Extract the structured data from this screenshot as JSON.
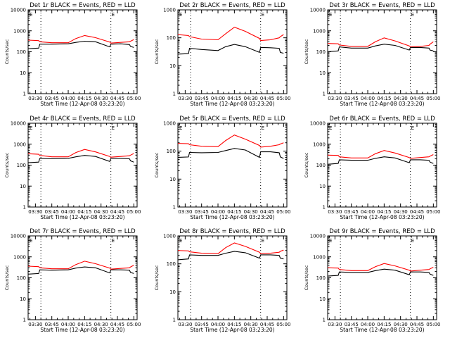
{
  "colors": {
    "events": "#000000",
    "lld": "#ff0000",
    "background": "#ffffff"
  },
  "chart_data": [
    {
      "type": "line",
      "title": "Det 1r BLACK = Events, RED = LLD",
      "xlabel": "Start Time (12-Apr-08 03:23:20)",
      "ylabel": "Counts/sec",
      "x_ticks": [
        "03:30",
        "03:45",
        "04:00",
        "04:15",
        "04:30",
        "04:45",
        "05:00"
      ],
      "y_ticks": [
        "1",
        "10",
        "100",
        "1000",
        "10000"
      ],
      "yscale": "log",
      "ylim": [
        1,
        10000
      ],
      "corner_label": "E",
      "vlines": [
        "03:35",
        "04:39"
      ],
      "series": [
        {
          "x": [
            "03:23",
            "03:33",
            "03:34",
            "03:45",
            "04:00",
            "04:07",
            "04:15",
            "04:25",
            "04:38",
            "04:39",
            "04:48",
            "04:56",
            "04:57",
            "05:00"
          ],
          "values": [
            140,
            150,
            230,
            230,
            240,
            280,
            320,
            300,
            170,
            230,
            240,
            220,
            180,
            160
          ]
        },
        {
          "x": [
            "03:23",
            "03:33",
            "03:34",
            "03:45",
            "04:00",
            "04:07",
            "04:15",
            "04:25",
            "04:38",
            "04:39",
            "04:48",
            "04:56",
            "04:57",
            "05:00"
          ],
          "values": [
            360,
            340,
            300,
            270,
            270,
            430,
            600,
            470,
            290,
            260,
            280,
            300,
            320,
            380
          ]
        }
      ]
    },
    {
      "type": "line",
      "title": "Det 2r BLACK = Events, RED = LLD",
      "xlabel": "Start Time (12-Apr-08 03:23:20)",
      "ylabel": "Counts/sec",
      "x_ticks": [
        "03:30",
        "03:45",
        "04:00",
        "04:15",
        "04:30",
        "04:45",
        "05:00"
      ],
      "y_ticks": [
        "1",
        "10",
        "100",
        "1000"
      ],
      "yscale": "log",
      "ylim": [
        1,
        1000
      ],
      "corner_label": "E",
      "vlines": [
        "03:35",
        "04:39"
      ],
      "series": [
        {
          "x": [
            "03:23",
            "03:33",
            "03:34",
            "03:45",
            "04:00",
            "04:07",
            "04:15",
            "04:25",
            "04:38",
            "04:39",
            "04:48",
            "04:56",
            "04:57",
            "05:00"
          ],
          "values": [
            26,
            27,
            42,
            38,
            35,
            48,
            58,
            48,
            30,
            45,
            44,
            42,
            30,
            28
          ]
        },
        {
          "x": [
            "03:23",
            "03:33",
            "03:34",
            "03:45",
            "04:00",
            "04:07",
            "04:15",
            "04:25",
            "04:38",
            "04:39",
            "04:48",
            "04:56",
            "04:57",
            "05:00"
          ],
          "values": [
            130,
            120,
            110,
            90,
            85,
            140,
            240,
            170,
            95,
            80,
            85,
            100,
            110,
            130
          ]
        }
      ]
    },
    {
      "type": "line",
      "title": "Det 3r BLACK = Events, RED = LLD",
      "xlabel": "Start Time (12-Apr-08 03:23:20)",
      "ylabel": "Counts/sec",
      "x_ticks": [
        "03:30",
        "03:45",
        "04:00",
        "04:15",
        "04:30",
        "04:45",
        "05:00"
      ],
      "y_ticks": [
        "1",
        "10",
        "100",
        "1000",
        "10000"
      ],
      "yscale": "log",
      "ylim": [
        1,
        10000
      ],
      "corner_label": "E",
      "vlines": [
        "03:35",
        "04:39"
      ],
      "series": [
        {
          "x": [
            "03:23",
            "03:33",
            "03:34",
            "03:45",
            "04:00",
            "04:07",
            "04:15",
            "04:25",
            "04:38",
            "04:39",
            "04:48",
            "04:56",
            "04:57",
            "05:00"
          ],
          "values": [
            100,
            110,
            170,
            150,
            150,
            190,
            230,
            200,
            120,
            160,
            160,
            150,
            120,
            110
          ]
        },
        {
          "x": [
            "03:23",
            "03:33",
            "03:34",
            "03:45",
            "04:00",
            "04:07",
            "04:15",
            "04:25",
            "04:38",
            "04:39",
            "04:48",
            "04:56",
            "04:57",
            "05:00"
          ],
          "values": [
            250,
            240,
            210,
            180,
            180,
            300,
            460,
            330,
            190,
            170,
            180,
            200,
            230,
            300
          ]
        }
      ]
    },
    {
      "type": "line",
      "title": "Det 4r BLACK = Events, RED = LLD",
      "xlabel": "Start Time (12-Apr-08 03:23:20)",
      "ylabel": "Counts/sec",
      "x_ticks": [
        "03:30",
        "03:45",
        "04:00",
        "04:15",
        "04:30",
        "04:45",
        "05:00"
      ],
      "y_ticks": [
        "1",
        "10",
        "100",
        "1000",
        "10000"
      ],
      "yscale": "log",
      "ylim": [
        1,
        10000
      ],
      "corner_label": "E",
      "vlines": [
        "03:35",
        "04:39"
      ],
      "series": [
        {
          "x": [
            "03:23",
            "03:33",
            "03:34",
            "03:45",
            "04:00",
            "04:07",
            "04:15",
            "04:25",
            "04:38",
            "04:39",
            "04:48",
            "04:56",
            "04:57",
            "05:00"
          ],
          "values": [
            130,
            140,
            210,
            200,
            210,
            250,
            290,
            260,
            150,
            210,
            210,
            200,
            160,
            140
          ]
        },
        {
          "x": [
            "03:23",
            "03:33",
            "03:34",
            "03:45",
            "04:00",
            "04:07",
            "04:15",
            "04:25",
            "04:38",
            "04:39",
            "04:48",
            "04:56",
            "04:57",
            "05:00"
          ],
          "values": [
            350,
            330,
            290,
            250,
            250,
            400,
            560,
            430,
            260,
            240,
            260,
            280,
            300,
            360
          ]
        }
      ]
    },
    {
      "type": "line",
      "title": "Det 5r BLACK = Events, RED = LLD",
      "xlabel": "Start Time (12-Apr-08 03:23:20)",
      "ylabel": "Counts/sec",
      "x_ticks": [
        "03:30",
        "03:45",
        "04:00",
        "04:15",
        "04:30",
        "04:45",
        "05:00"
      ],
      "y_ticks": [
        "1",
        "10",
        "100",
        "1000"
      ],
      "yscale": "log",
      "ylim": [
        1,
        1000
      ],
      "corner_label": "E",
      "vlines": [
        "03:35",
        "04:39"
      ],
      "series": [
        {
          "x": [
            "03:23",
            "03:33",
            "03:34",
            "03:45",
            "04:00",
            "04:07",
            "04:15",
            "04:25",
            "04:38",
            "04:39",
            "04:48",
            "04:56",
            "04:57",
            "05:00"
          ],
          "values": [
            60,
            62,
            90,
            88,
            90,
            105,
            125,
            110,
            60,
            95,
            95,
            88,
            62,
            55
          ]
        },
        {
          "x": [
            "03:23",
            "03:33",
            "03:34",
            "03:45",
            "04:00",
            "04:07",
            "04:15",
            "04:25",
            "04:38",
            "04:39",
            "04:48",
            "04:56",
            "04:57",
            "05:00"
          ],
          "values": [
            190,
            185,
            170,
            150,
            145,
            240,
            380,
            270,
            160,
            140,
            150,
            170,
            180,
            200
          ]
        }
      ]
    },
    {
      "type": "line",
      "title": "Det 6r BLACK = Events, RED = LLD",
      "xlabel": "Start Time (12-Apr-08 03:23:20)",
      "ylabel": "Counts/sec",
      "x_ticks": [
        "03:30",
        "03:45",
        "04:00",
        "04:15",
        "04:30",
        "04:45",
        "05:00"
      ],
      "y_ticks": [
        "1",
        "10",
        "100",
        "1000",
        "10000"
      ],
      "yscale": "log",
      "ylim": [
        1,
        10000
      ],
      "corner_label": "E",
      "vlines": [
        "03:35",
        "04:39"
      ],
      "series": [
        {
          "x": [
            "03:23",
            "03:33",
            "03:34",
            "03:45",
            "04:00",
            "04:07",
            "04:15",
            "04:25",
            "04:38",
            "04:39",
            "04:48",
            "04:56",
            "04:57",
            "05:00"
          ],
          "values": [
            110,
            120,
            180,
            170,
            170,
            210,
            250,
            220,
            130,
            180,
            180,
            170,
            140,
            120
          ]
        },
        {
          "x": [
            "03:23",
            "03:33",
            "03:34",
            "03:45",
            "04:00",
            "04:07",
            "04:15",
            "04:25",
            "04:38",
            "04:39",
            "04:48",
            "04:56",
            "04:57",
            "05:00"
          ],
          "values": [
            300,
            290,
            250,
            220,
            220,
            350,
            500,
            380,
            230,
            210,
            230,
            250,
            270,
            320
          ]
        }
      ]
    },
    {
      "type": "line",
      "title": "Det 7r BLACK = Events, RED = LLD",
      "xlabel": "Start Time (12-Apr-08 03:23:20)",
      "ylabel": "Counts/sec",
      "x_ticks": [
        "03:30",
        "03:45",
        "04:00",
        "04:15",
        "04:30",
        "04:45",
        "05:00"
      ],
      "y_ticks": [
        "1",
        "10",
        "100",
        "1000",
        "10000"
      ],
      "yscale": "log",
      "ylim": [
        1,
        10000
      ],
      "corner_label": "E",
      "vlines": [
        "03:35",
        "04:39"
      ],
      "series": [
        {
          "x": [
            "03:23",
            "03:33",
            "03:34",
            "03:45",
            "04:00",
            "04:07",
            "04:15",
            "04:25",
            "04:38",
            "04:39",
            "04:48",
            "04:56",
            "04:57",
            "05:00"
          ],
          "values": [
            150,
            160,
            240,
            230,
            240,
            290,
            330,
            300,
            170,
            240,
            240,
            230,
            180,
            160
          ]
        },
        {
          "x": [
            "03:23",
            "03:33",
            "03:34",
            "03:45",
            "04:00",
            "04:07",
            "04:15",
            "04:25",
            "04:38",
            "04:39",
            "04:48",
            "04:56",
            "04:57",
            "05:00"
          ],
          "values": [
            360,
            340,
            300,
            270,
            270,
            430,
            620,
            470,
            290,
            260,
            280,
            300,
            330,
            400
          ]
        }
      ]
    },
    {
      "type": "line",
      "title": "Det 8r BLACK = Events, RED = LLD",
      "xlabel": "Start Time (12-Apr-08 03:23:20)",
      "ylabel": "Counts/sec",
      "x_ticks": [
        "03:30",
        "03:45",
        "04:00",
        "04:15",
        "04:30",
        "04:45",
        "05:00"
      ],
      "y_ticks": [
        "1",
        "10",
        "100",
        "1000"
      ],
      "yscale": "log",
      "ylim": [
        1,
        1000
      ],
      "corner_label": "E",
      "vlines": [
        "03:35",
        "04:39"
      ],
      "series": [
        {
          "x": [
            "03:23",
            "03:33",
            "03:34",
            "03:45",
            "04:00",
            "04:07",
            "04:15",
            "04:25",
            "04:38",
            "04:39",
            "04:48",
            "04:56",
            "04:57",
            "05:00"
          ],
          "values": [
            140,
            150,
            210,
            200,
            200,
            240,
            280,
            250,
            160,
            210,
            210,
            200,
            160,
            150
          ]
        },
        {
          "x": [
            "03:23",
            "03:33",
            "03:34",
            "03:45",
            "04:00",
            "04:07",
            "04:15",
            "04:25",
            "04:38",
            "04:39",
            "04:48",
            "04:56",
            "04:57",
            "05:00"
          ],
          "values": [
            300,
            290,
            270,
            240,
            230,
            380,
            560,
            420,
            260,
            230,
            240,
            260,
            280,
            310
          ]
        }
      ]
    },
    {
      "type": "line",
      "title": "Det 9r BLACK = Events, RED = LLD",
      "xlabel": "Start Time (12-Apr-08 03:23:20)",
      "ylabel": "Counts/sec",
      "x_ticks": [
        "03:30",
        "03:45",
        "04:00",
        "04:15",
        "04:30",
        "04:45",
        "05:00"
      ],
      "y_ticks": [
        "1",
        "10",
        "100",
        "1000",
        "10000"
      ],
      "yscale": "log",
      "ylim": [
        1,
        10000
      ],
      "corner_label": "E",
      "vlines": [
        "03:35",
        "04:39"
      ],
      "series": [
        {
          "x": [
            "03:23",
            "03:33",
            "03:34",
            "03:45",
            "04:00",
            "04:07",
            "04:15",
            "04:25",
            "04:38",
            "04:39",
            "04:48",
            "04:56",
            "04:57",
            "05:00"
          ],
          "values": [
            120,
            130,
            190,
            180,
            180,
            220,
            260,
            230,
            140,
            190,
            190,
            180,
            150,
            130
          ]
        },
        {
          "x": [
            "03:23",
            "03:33",
            "03:34",
            "03:45",
            "04:00",
            "04:07",
            "04:15",
            "04:25",
            "04:38",
            "04:39",
            "04:48",
            "04:56",
            "04:57",
            "05:00"
          ],
          "values": [
            300,
            290,
            250,
            220,
            220,
            340,
            480,
            370,
            230,
            210,
            230,
            250,
            270,
            320
          ]
        }
      ]
    }
  ]
}
